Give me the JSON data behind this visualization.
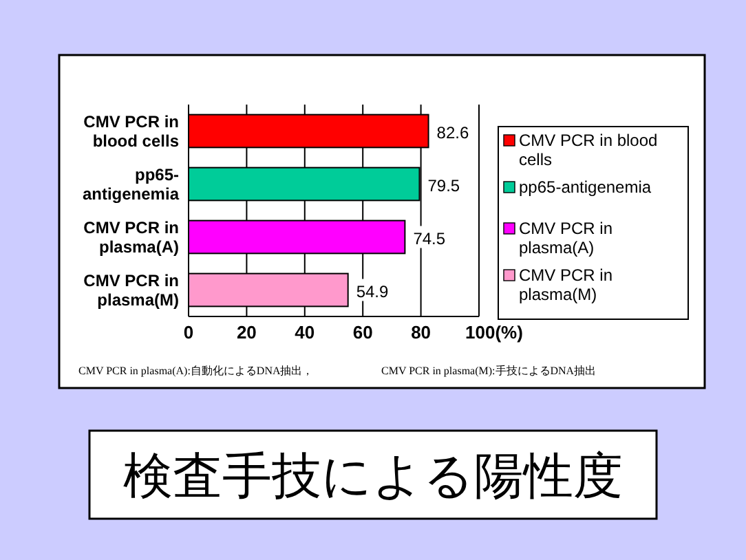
{
  "chart_data": {
    "type": "bar",
    "orientation": "horizontal",
    "stacked": true,
    "title": "検査手技による陽性度",
    "categories": [
      "CMV PCR in blood cells",
      "pp65-antigenemia",
      "CMV PCR in plasma(A)",
      "CMV PCR in plasma(M)"
    ],
    "series": [
      {
        "name": "CMV PCR in blood cells",
        "color": "#ff0000",
        "values": [
          82.6,
          null,
          null,
          null
        ]
      },
      {
        "name": "pp65-antigenemia",
        "color": "#00cc99",
        "values": [
          null,
          79.5,
          null,
          null
        ]
      },
      {
        "name": "CMV PCR in plasma(A)",
        "color": "#ff00ff",
        "values": [
          null,
          null,
          74.5,
          null
        ]
      },
      {
        "name": "CMV PCR in plasma(M)",
        "color": "#ff99cc",
        "values": [
          null,
          null,
          null,
          54.9
        ]
      }
    ],
    "xlim": [
      0,
      100
    ],
    "xticks": [
      0,
      20,
      40,
      60,
      80,
      {
        "value": 100,
        "label": "100(%)"
      }
    ],
    "grid": "x",
    "data_labels": true,
    "legend": "right",
    "annotations": [
      "CMV PCR in plasma(A):自動化によるDNA抽出，",
      "CMV PCR in plasma(M):手技によるDNA抽出"
    ]
  }
}
